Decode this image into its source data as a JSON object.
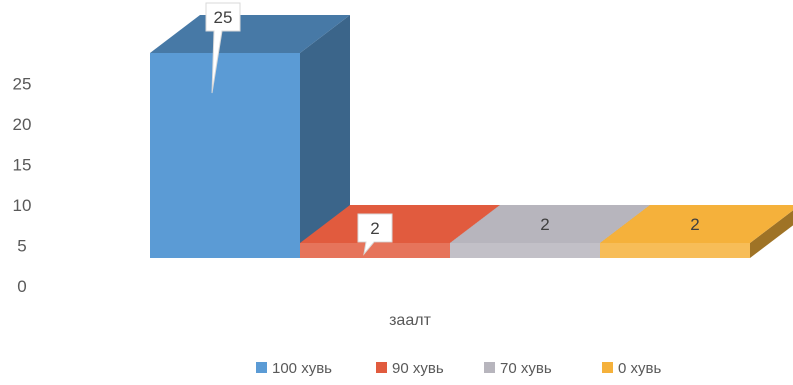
{
  "chart_data": {
    "type": "bar",
    "title": "",
    "xlabel": "заалт",
    "ylabel": "",
    "ylim": [
      0,
      25
    ],
    "yticks": [
      0,
      5,
      10,
      15,
      20,
      25
    ],
    "grid": false,
    "legend": "bottom",
    "series": [
      {
        "name": "100 хувь",
        "value": 25,
        "data_label": "25",
        "color": "#5b9bd5"
      },
      {
        "name": "90 хувь",
        "value": 2,
        "data_label": "2",
        "color": "#e15b3e"
      },
      {
        "name": "70 хувь",
        "value": 2,
        "data_label": "2",
        "color": "#b7b5bd"
      },
      {
        "name": "0 хувь",
        "value": 2,
        "data_label": "2",
        "color": "#f5b13b"
      }
    ]
  }
}
